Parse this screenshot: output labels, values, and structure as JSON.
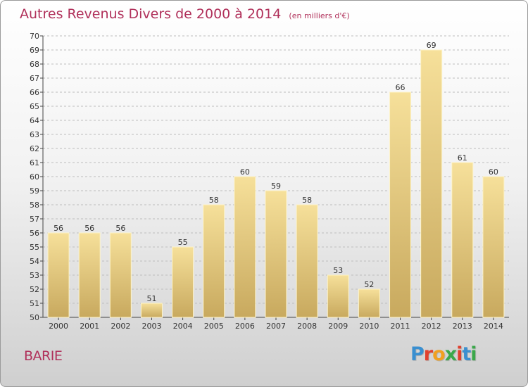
{
  "header": {
    "title": "Autres Revenus Divers de 2000 à 2014",
    "subtitle": "(en milliers d'€)"
  },
  "footer": {
    "commune": "BARIE",
    "logo_text": "Proxiti"
  },
  "colors": {
    "title": "#b0305a",
    "bar_light": "#f6e09a",
    "bar_dark": "#c8a95e",
    "axis": "#444444"
  },
  "chart_data": {
    "type": "bar",
    "title": "Autres Revenus Divers de 2000 à 2014",
    "subtitle": "(en milliers d'€)",
    "categories": [
      "2000",
      "2001",
      "2002",
      "2003",
      "2004",
      "2005",
      "2006",
      "2007",
      "2008",
      "2009",
      "2010",
      "2011",
      "2012",
      "2013",
      "2014"
    ],
    "values": [
      56,
      56,
      56,
      51,
      55,
      58,
      60,
      59,
      58,
      53,
      52,
      66,
      69,
      61,
      60
    ],
    "ylim": [
      50,
      70
    ],
    "yticks": [
      50,
      51,
      52,
      53,
      54,
      55,
      56,
      57,
      58,
      59,
      60,
      61,
      62,
      63,
      64,
      65,
      66,
      67,
      68,
      69,
      70
    ],
    "grid": "dashed-horizontal",
    "data_labels": true
  }
}
